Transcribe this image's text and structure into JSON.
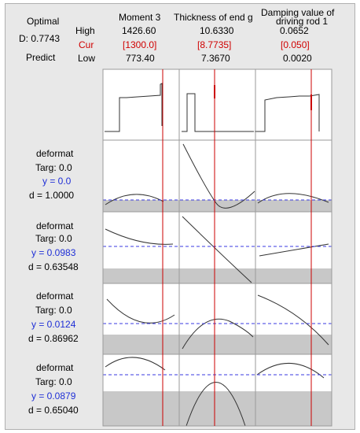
{
  "header": {
    "optimal_label": "Optimal",
    "d_label": "D: 0.7743",
    "predict_label": "Predict",
    "high_label": "High",
    "cur_label": "Cur",
    "low_label": "Low"
  },
  "factors": [
    {
      "name": "Moment 3",
      "high": "1426.60",
      "cur": "[1300.0]",
      "low": "773.40",
      "cur_value": 1300.0,
      "cur_frac": 0.81
    },
    {
      "name": "Thickness of end g",
      "high": "10.6330",
      "cur": "[8.7735]",
      "low": "7.3670",
      "cur_value": 8.7735,
      "cur_frac": 0.43
    },
    {
      "name": "Damping value of driving rod 1",
      "name_line1": "Damping value of",
      "name_line2": "driving rod 1",
      "high": "0.0652",
      "cur": "[0.050]",
      "low": "0.0020",
      "cur_value": 0.05,
      "cur_frac": 0.73
    }
  ],
  "responses": [
    {
      "name": "deformat",
      "target": "Targ: 0.0",
      "y": "y = 0.0",
      "d": "d = 1.0000"
    },
    {
      "name": "deformat",
      "target": "Targ: 0.0",
      "y": "y = 0.0983",
      "d": "d = 0.63548"
    },
    {
      "name": "deformat",
      "target": "Targ: 0.0",
      "y": "y = 0.0124",
      "d": "d = 0.86962"
    },
    {
      "name": "deformat",
      "target": "Targ: 0.0",
      "y": "y = 0.0879",
      "d": "d = 0.65040"
    }
  ],
  "colors": {
    "current_line": "#cc0000",
    "target_line": "#3a3ae0",
    "band": "#c8c8c8",
    "curve": "#333333",
    "cur_text": "#d00000",
    "y_text": "#1f2fd6"
  }
}
